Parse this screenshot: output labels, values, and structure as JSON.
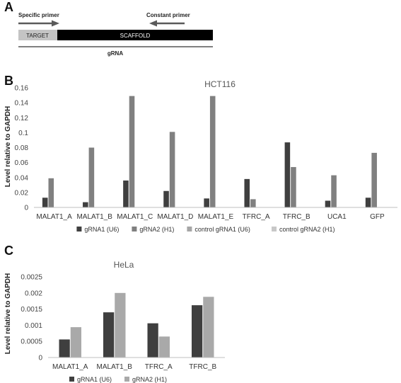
{
  "panels": {
    "a": "A",
    "b": "B",
    "c": "C"
  },
  "schematic": {
    "specific_primer": "Specific primer",
    "constant_primer": "Constant primer",
    "target": "TARGET",
    "scaffold": "SCAFFOLD",
    "grna": "gRNA",
    "colors": {
      "target": "#c4c4c4",
      "scaffold": "#000000",
      "arrow": "#5a5a5a"
    }
  },
  "chart_data": [
    {
      "type": "bar",
      "title": "HCT116",
      "ylabel": "Level relative to GAPDH",
      "xlabel": "",
      "ylim": [
        0,
        0.16
      ],
      "yticks": [
        "0",
        "0.02",
        "0.04",
        "0.06",
        "0.08",
        "0.1",
        "0.12",
        "0.14",
        "0.16"
      ],
      "categories": [
        "MALAT1_A",
        "MALAT1_B",
        "MALAT1_C",
        "MALAT1_D",
        "MALAT1_E",
        "TFRC_A",
        "TFRC_B",
        "UCA1",
        "GFP"
      ],
      "series": [
        {
          "name": "gRNA1 (U6)",
          "color": "#3f3f3f",
          "values": [
            0.013,
            0.007,
            0.036,
            0.022,
            0.012,
            0.038,
            0.087,
            0.009,
            0.013
          ]
        },
        {
          "name": "gRNA2 (H1)",
          "color": "#808080",
          "values": [
            0.039,
            0.08,
            0.149,
            0.101,
            0.149,
            0.011,
            0.054,
            0.043,
            0.073
          ]
        },
        {
          "name": "control gRNA1 (U6)",
          "color": "#a6a6a6",
          "values": [
            0,
            0,
            0,
            0,
            0,
            0,
            0,
            0,
            0
          ]
        },
        {
          "name": "control gRNA2 (H1)",
          "color": "#c8c8c8",
          "values": [
            0,
            0,
            0,
            0,
            0,
            0,
            0,
            0,
            0
          ]
        }
      ],
      "legend": "bottom",
      "grid": false
    },
    {
      "type": "bar",
      "title": "HeLa",
      "ylabel": "Level relative to GAPDH",
      "xlabel": "",
      "ylim": [
        0,
        0.0025
      ],
      "yticks": [
        "0",
        "0.0005",
        "0.001",
        "0.0015",
        "0.002",
        "0.0025"
      ],
      "categories": [
        "MALAT1_A",
        "MALAT1_B",
        "TFRC_A",
        "TFRC_B"
      ],
      "series": [
        {
          "name": "gRNA1 (U6)",
          "color": "#3f3f3f",
          "values": [
            0.00056,
            0.0014,
            0.00106,
            0.00162
          ]
        },
        {
          "name": "gRNA2 (H1)",
          "color": "#a9a9a9",
          "values": [
            0.00094,
            0.002,
            0.00065,
            0.00188
          ]
        }
      ],
      "legend": "bottom",
      "grid": false
    }
  ]
}
